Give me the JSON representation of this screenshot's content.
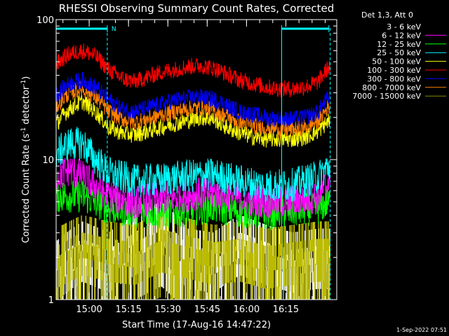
{
  "chart_data": {
    "type": "line",
    "title": "RHESSI Observing Summary Count Rates, Corrected",
    "xlabel": "Start Time (17-Aug-16 14:47:22)",
    "ylabel_main": "Corrected Count Rate (s",
    "ylabel_sup1": "-1",
    "ylabel_mid": " detector",
    "ylabel_sup2": "-1",
    "ylabel_end": ")",
    "yscale": "log",
    "ylim": [
      1,
      100
    ],
    "xlim_minutes": [
      0,
      107
    ],
    "x_ticks": [
      {
        "label": "15:00",
        "minutes": 12.6
      },
      {
        "label": "15:15",
        "minutes": 27.6
      },
      {
        "label": "15:30",
        "minutes": 42.6
      },
      {
        "label": "15:45",
        "minutes": 57.6
      },
      {
        "label": "16:00",
        "minutes": 72.6
      },
      {
        "label": "16:15",
        "minutes": 87.6
      }
    ],
    "y_ticks": [
      {
        "label": "1",
        "value": 1
      },
      {
        "label": "10",
        "value": 10
      },
      {
        "label": "100",
        "value": 100
      }
    ],
    "legend": {
      "header": "Det 1,3, Att 0",
      "position": "right"
    },
    "series": [
      {
        "name": "3 - 6 keV",
        "color": "#ffffff",
        "legend_color": "#000000",
        "points": [
          [
            0,
            1.3
          ],
          [
            10,
            1.8
          ],
          [
            20,
            1.5
          ],
          [
            30,
            2.0
          ],
          [
            40,
            2.5
          ],
          [
            50,
            1.6
          ],
          [
            60,
            1.5
          ],
          [
            70,
            2.0
          ],
          [
            80,
            1.7
          ],
          [
            90,
            1.5
          ],
          [
            100,
            1.6
          ]
        ]
      },
      {
        "name": "6 - 12 keV",
        "color": "#ff00ff",
        "points": [
          [
            0,
            7.5
          ],
          [
            5,
            8.5
          ],
          [
            10,
            7.5
          ],
          [
            15,
            6.5
          ],
          [
            20,
            5.5
          ],
          [
            30,
            5.0
          ],
          [
            40,
            5.3
          ],
          [
            50,
            5.6
          ],
          [
            60,
            5.8
          ],
          [
            70,
            5.3
          ],
          [
            80,
            5.0
          ],
          [
            90,
            5.0
          ],
          [
            100,
            5.5
          ],
          [
            104,
            7.0
          ]
        ]
      },
      {
        "name": "12 - 25 keV",
        "color": "#00ff00",
        "points": [
          [
            0,
            5.5
          ],
          [
            10,
            5.5
          ],
          [
            20,
            4.5
          ],
          [
            30,
            4.3
          ],
          [
            40,
            4.2
          ],
          [
            50,
            4.4
          ],
          [
            60,
            4.6
          ],
          [
            70,
            4.3
          ],
          [
            80,
            4.1
          ],
          [
            90,
            4.3
          ],
          [
            100,
            4.5
          ],
          [
            104,
            5.0
          ]
        ]
      },
      {
        "name": "25 - 50 keV",
        "color": "#00ffff",
        "points": [
          [
            0,
            11
          ],
          [
            5,
            13
          ],
          [
            10,
            13
          ],
          [
            15,
            10
          ],
          [
            20,
            8
          ],
          [
            30,
            7.0
          ],
          [
            40,
            7.2
          ],
          [
            50,
            7.6
          ],
          [
            60,
            7.8
          ],
          [
            70,
            7.0
          ],
          [
            80,
            6.5
          ],
          [
            90,
            6.6
          ],
          [
            100,
            7.5
          ],
          [
            104,
            9.0
          ]
        ]
      },
      {
        "name": "50 - 100 keV",
        "color": "#ffff00",
        "points": [
          [
            0,
            18
          ],
          [
            5,
            23
          ],
          [
            10,
            26
          ],
          [
            15,
            22
          ],
          [
            20,
            17
          ],
          [
            25,
            15.5
          ],
          [
            30,
            15
          ],
          [
            35,
            16
          ],
          [
            40,
            17
          ],
          [
            45,
            18
          ],
          [
            50,
            19
          ],
          [
            55,
            20
          ],
          [
            60,
            19.5
          ],
          [
            65,
            17
          ],
          [
            70,
            15.5
          ],
          [
            75,
            14.5
          ],
          [
            80,
            14
          ],
          [
            85,
            14
          ],
          [
            90,
            14
          ],
          [
            95,
            14.5
          ],
          [
            100,
            16
          ],
          [
            104,
            19
          ]
        ]
      },
      {
        "name": "100 - 300 keV",
        "color": "#ff0000",
        "points": [
          [
            0,
            48
          ],
          [
            5,
            57
          ],
          [
            10,
            60
          ],
          [
            15,
            55
          ],
          [
            20,
            44
          ],
          [
            25,
            38
          ],
          [
            30,
            36
          ],
          [
            35,
            39
          ],
          [
            40,
            42
          ],
          [
            45,
            44
          ],
          [
            50,
            46
          ],
          [
            55,
            47
          ],
          [
            60,
            45
          ],
          [
            65,
            41
          ],
          [
            70,
            37
          ],
          [
            75,
            35
          ],
          [
            80,
            33
          ],
          [
            85,
            32
          ],
          [
            90,
            32
          ],
          [
            95,
            33
          ],
          [
            100,
            36
          ],
          [
            104,
            46
          ]
        ]
      },
      {
        "name": "300 - 800 keV",
        "color": "#0000ff",
        "points": [
          [
            0,
            29
          ],
          [
            5,
            35
          ],
          [
            10,
            37
          ],
          [
            15,
            33
          ],
          [
            20,
            27
          ],
          [
            25,
            23
          ],
          [
            30,
            22
          ],
          [
            35,
            23.5
          ],
          [
            40,
            25
          ],
          [
            45,
            26.5
          ],
          [
            50,
            27.5
          ],
          [
            55,
            28
          ],
          [
            60,
            27
          ],
          [
            65,
            24.5
          ],
          [
            70,
            22
          ],
          [
            75,
            21
          ],
          [
            80,
            20
          ],
          [
            85,
            19.5
          ],
          [
            90,
            19.5
          ],
          [
            95,
            20
          ],
          [
            100,
            22
          ],
          [
            104,
            28
          ]
        ]
      },
      {
        "name": "800 - 7000 keV",
        "color": "#ff8000",
        "points": [
          [
            0,
            24
          ],
          [
            5,
            30
          ],
          [
            10,
            32
          ],
          [
            15,
            28
          ],
          [
            20,
            22
          ],
          [
            25,
            19.5
          ],
          [
            30,
            18.5
          ],
          [
            35,
            19.5
          ],
          [
            40,
            21
          ],
          [
            45,
            22
          ],
          [
            50,
            23
          ],
          [
            55,
            23.5
          ],
          [
            60,
            22.5
          ],
          [
            65,
            20.5
          ],
          [
            70,
            18.5
          ],
          [
            75,
            17.5
          ],
          [
            80,
            17
          ],
          [
            85,
            16.5
          ],
          [
            90,
            16.5
          ],
          [
            95,
            17
          ],
          [
            100,
            19
          ],
          [
            104,
            24
          ]
        ]
      },
      {
        "name": "7000 - 15000 keV",
        "color": "#bbbb00",
        "legend_color": "#888800",
        "points": [
          [
            0,
            1.6
          ],
          [
            10,
            2.0
          ],
          [
            20,
            1.8
          ],
          [
            30,
            1.7
          ],
          [
            40,
            2.1
          ],
          [
            50,
            1.9
          ],
          [
            60,
            1.7
          ],
          [
            70,
            1.8
          ],
          [
            80,
            1.6
          ],
          [
            90,
            1.7
          ],
          [
            100,
            1.8
          ]
        ]
      }
    ],
    "night_intervals": [
      [
        0,
        19.5
      ],
      [
        86,
        104
      ]
    ],
    "saa_markers": [
      19.5,
      86
    ],
    "flag_label": "N",
    "footer_timestamp": "1-Sep-2022 07:51"
  }
}
